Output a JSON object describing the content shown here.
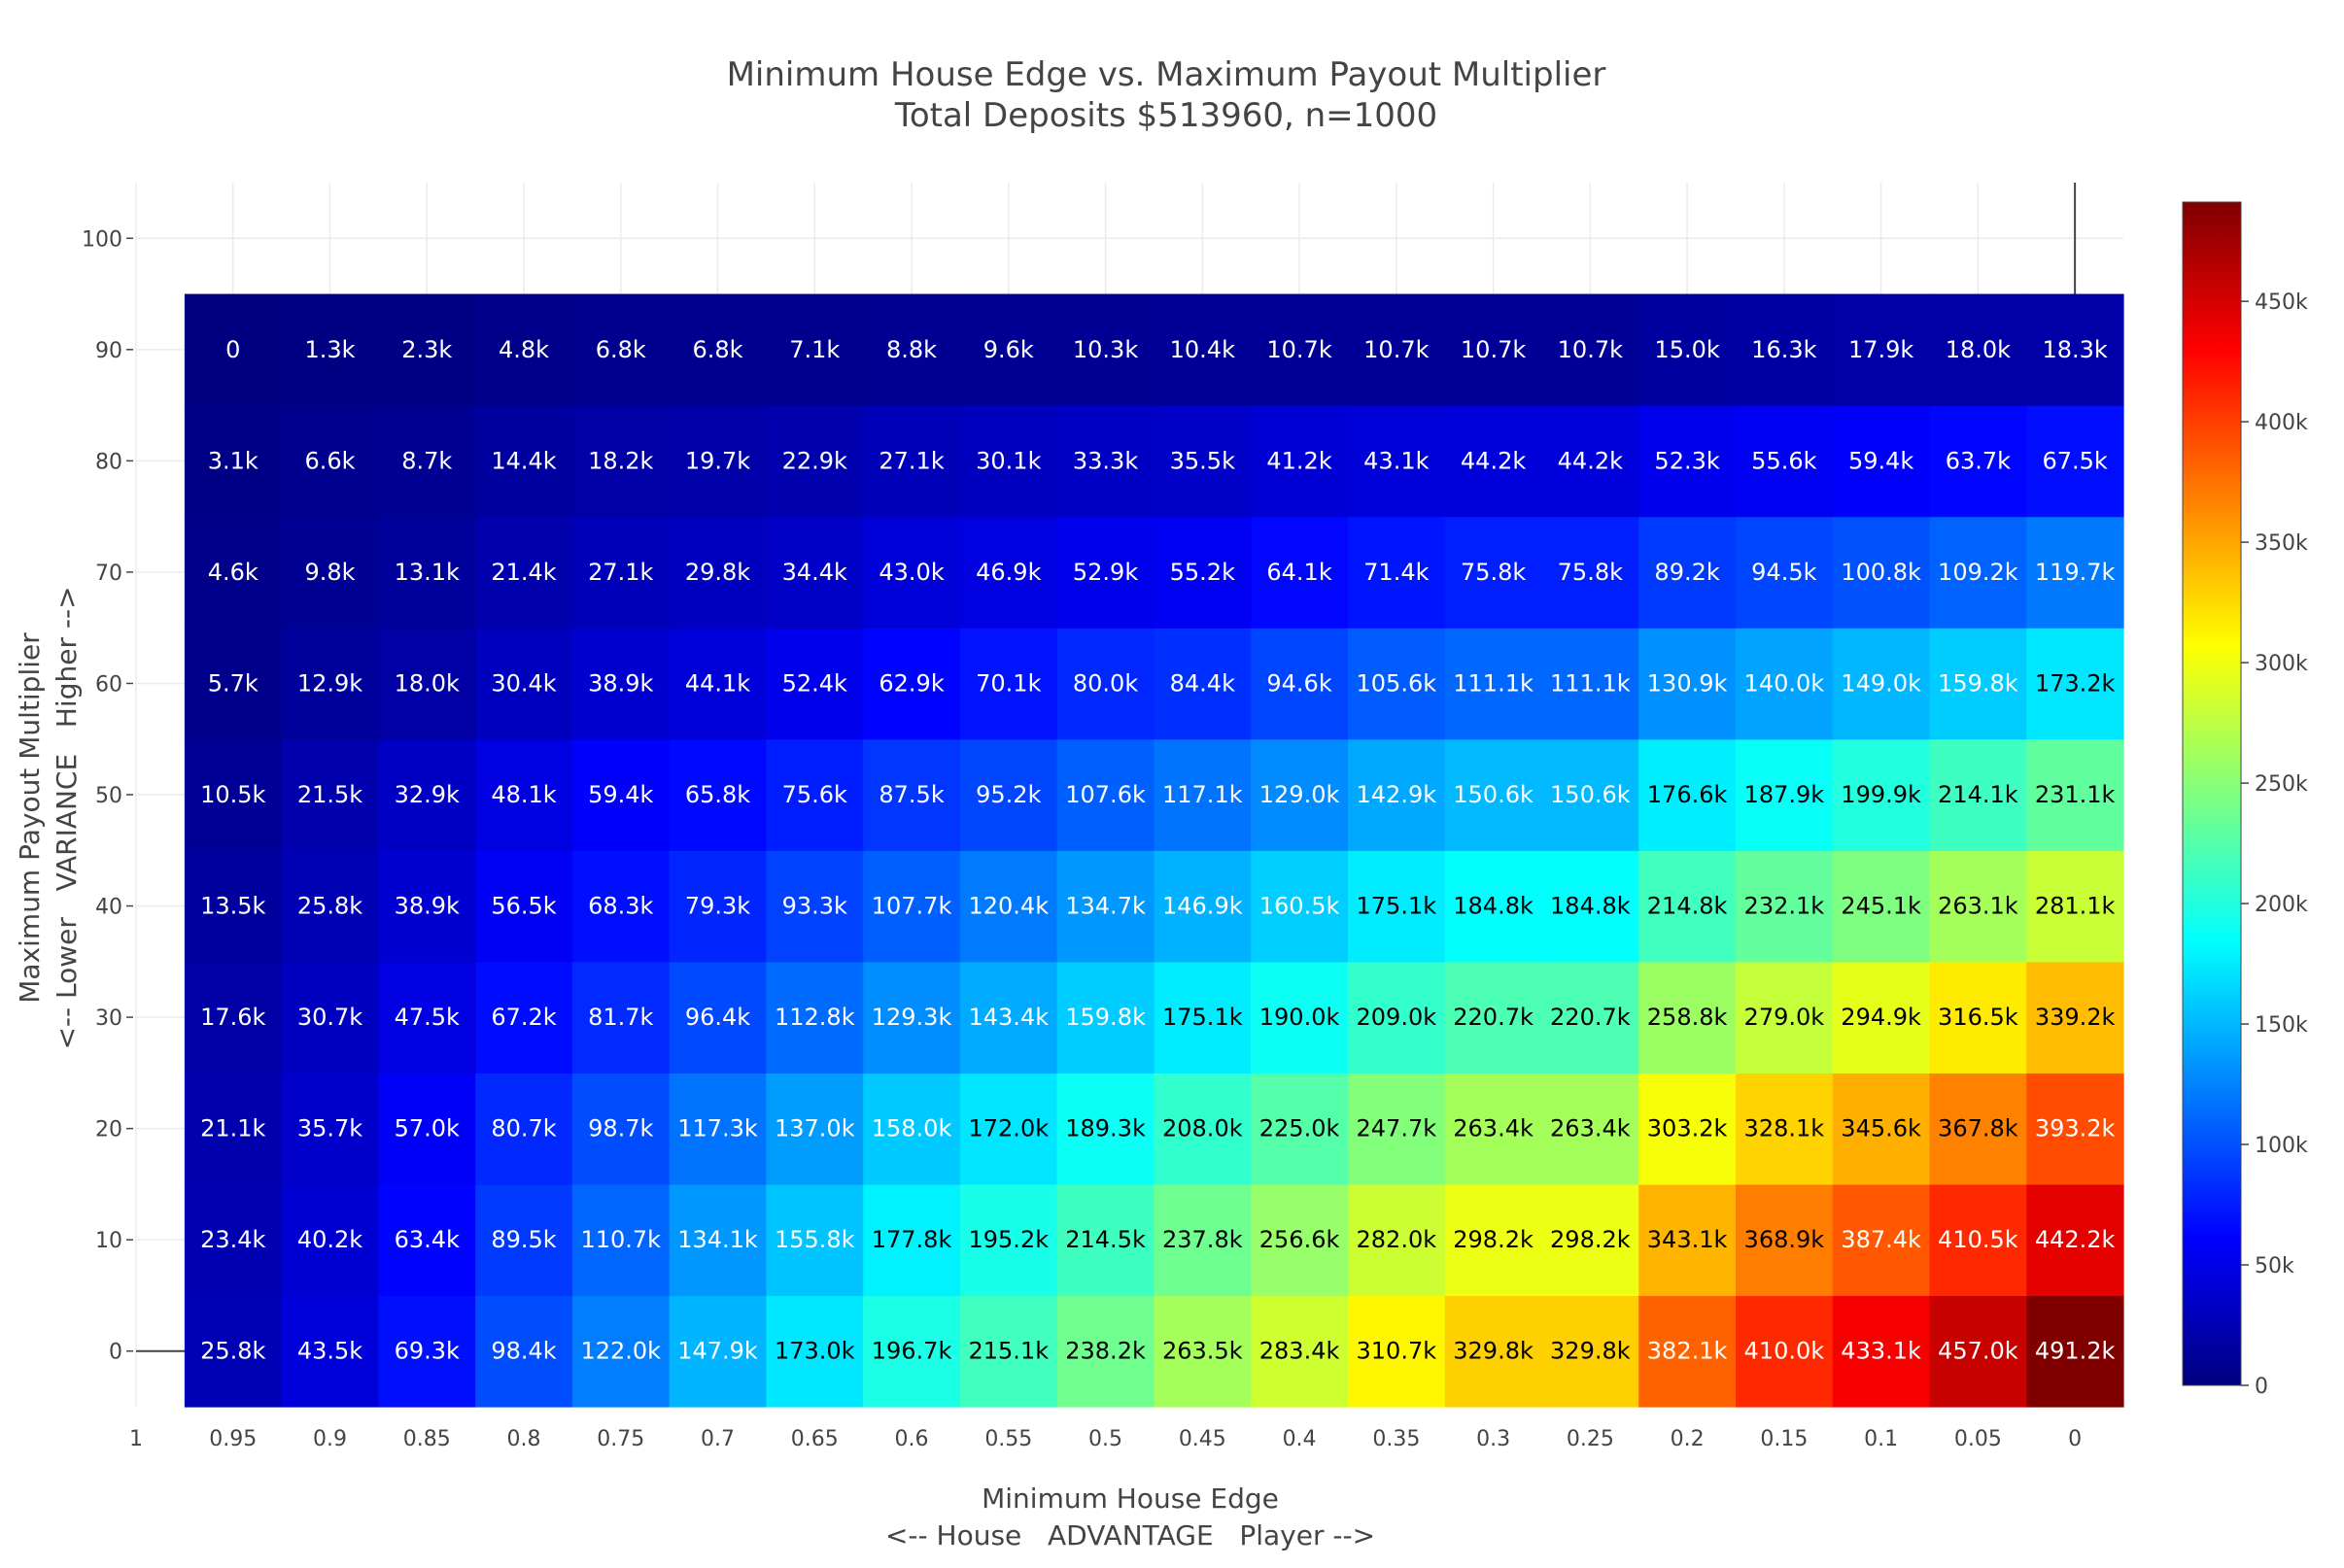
{
  "chart_data": {
    "type": "heatmap",
    "title": "Minimum House Edge vs. Maximum Payout Multiplier",
    "subtitle": "Total Deposits $513960, n=1000",
    "xlabel": "Minimum House Edge",
    "xlabel_sub": "<-- House   ADVANTAGE   Player -->",
    "ylabel": "Maximum Payout Multiplier",
    "ylabel_sub": "<-- Lower   VARIANCE   Higher -->",
    "x_ticks": [
      "1",
      "0.95",
      "0.9",
      "0.85",
      "0.8",
      "0.75",
      "0.7",
      "0.65",
      "0.6",
      "0.55",
      "0.5",
      "0.45",
      "0.4",
      "0.35",
      "0.3",
      "0.25",
      "0.2",
      "0.15",
      "0.1",
      "0.05",
      "0"
    ],
    "x_tick_values": [
      1,
      0.95,
      0.9,
      0.85,
      0.8,
      0.75,
      0.7,
      0.65,
      0.6,
      0.55,
      0.5,
      0.45,
      0.4,
      0.35,
      0.3,
      0.25,
      0.2,
      0.15,
      0.1,
      0.05,
      0
    ],
    "x_range": [
      1.0,
      -0.025
    ],
    "y_ticks": [
      "0",
      "10",
      "20",
      "30",
      "40",
      "50",
      "60",
      "70",
      "80",
      "90",
      "100"
    ],
    "y_tick_values": [
      0,
      10,
      20,
      30,
      40,
      50,
      60,
      70,
      80,
      90,
      100
    ],
    "y_range": [
      -5,
      105
    ],
    "x": [
      0.95,
      0.9,
      0.85,
      0.8,
      0.75,
      0.7,
      0.65,
      0.6,
      0.55,
      0.5,
      0.45,
      0.4,
      0.35,
      0.3,
      0.25,
      0.2,
      0.15,
      0.1,
      0.05,
      0
    ],
    "y": [
      0,
      10,
      20,
      30,
      40,
      50,
      60,
      70,
      80,
      90
    ],
    "z": [
      [
        25800,
        43500,
        69300,
        98400,
        122000,
        147900,
        173000,
        196700,
        215100,
        238200,
        263500,
        283400,
        310700,
        329800,
        329800,
        382100,
        410000,
        433100,
        457000,
        491200
      ],
      [
        23400,
        40200,
        63400,
        89500,
        110700,
        134100,
        155800,
        177800,
        195200,
        214500,
        237800,
        256600,
        282000,
        298200,
        298200,
        343100,
        368900,
        387400,
        410500,
        442200
      ],
      [
        21100,
        35700,
        57000,
        80700,
        98700,
        117300,
        137000,
        158000,
        172000,
        189300,
        208000,
        225000,
        247700,
        263400,
        263400,
        303200,
        328100,
        345600,
        367800,
        393200
      ],
      [
        17600,
        30700,
        47500,
        67200,
        81700,
        96400,
        112800,
        129300,
        143400,
        159800,
        175100,
        190000,
        209000,
        220700,
        220700,
        258800,
        279000,
        294900,
        316500,
        339200
      ],
      [
        13500,
        25800,
        38900,
        56500,
        68300,
        79300,
        93300,
        107700,
        120400,
        134700,
        146900,
        160500,
        175100,
        184800,
        184800,
        214800,
        232100,
        245100,
        263100,
        281100
      ],
      [
        10500,
        21500,
        32900,
        48100,
        59400,
        65800,
        75600,
        87500,
        95200,
        107600,
        117100,
        129000,
        142900,
        150600,
        150600,
        176600,
        187900,
        199900,
        214100,
        231100
      ],
      [
        5700,
        12900,
        18000,
        30400,
        38900,
        44100,
        52400,
        62900,
        70100,
        80000,
        84400,
        94600,
        105600,
        111100,
        111100,
        130900,
        140000,
        149000,
        159800,
        173200
      ],
      [
        4600,
        9800,
        13100,
        21400,
        27100,
        29800,
        34400,
        43000,
        46900,
        52900,
        55200,
        64100,
        71400,
        75800,
        75800,
        89200,
        94500,
        100800,
        109200,
        119700
      ],
      [
        3100,
        6600,
        8700,
        14400,
        18200,
        19700,
        22900,
        27100,
        30100,
        33300,
        35500,
        41200,
        43100,
        44200,
        44200,
        52300,
        55600,
        59400,
        63700,
        67500
      ],
      [
        0,
        1300,
        2300,
        4800,
        6800,
        6800,
        7100,
        8800,
        9600,
        10300,
        10400,
        10700,
        10700,
        10700,
        10700,
        15000,
        16300,
        17900,
        18000,
        18300
      ]
    ],
    "text": [
      [
        "25.8k",
        "43.5k",
        "69.3k",
        "98.4k",
        "122.0k",
        "147.9k",
        "173.0k",
        "196.7k",
        "215.1k",
        "238.2k",
        "263.5k",
        "283.4k",
        "310.7k",
        "329.8k",
        "329.8k",
        "382.1k",
        "410.0k",
        "433.1k",
        "457.0k",
        "491.2k"
      ],
      [
        "23.4k",
        "40.2k",
        "63.4k",
        "89.5k",
        "110.7k",
        "134.1k",
        "155.8k",
        "177.8k",
        "195.2k",
        "214.5k",
        "237.8k",
        "256.6k",
        "282.0k",
        "298.2k",
        "298.2k",
        "343.1k",
        "368.9k",
        "387.4k",
        "410.5k",
        "442.2k"
      ],
      [
        "21.1k",
        "35.7k",
        "57.0k",
        "80.7k",
        "98.7k",
        "117.3k",
        "137.0k",
        "158.0k",
        "172.0k",
        "189.3k",
        "208.0k",
        "225.0k",
        "247.7k",
        "263.4k",
        "263.4k",
        "303.2k",
        "328.1k",
        "345.6k",
        "367.8k",
        "393.2k"
      ],
      [
        "17.6k",
        "30.7k",
        "47.5k",
        "67.2k",
        "81.7k",
        "96.4k",
        "112.8k",
        "129.3k",
        "143.4k",
        "159.8k",
        "175.1k",
        "190.0k",
        "209.0k",
        "220.7k",
        "220.7k",
        "258.8k",
        "279.0k",
        "294.9k",
        "316.5k",
        "339.2k"
      ],
      [
        "13.5k",
        "25.8k",
        "38.9k",
        "56.5k",
        "68.3k",
        "79.3k",
        "93.3k",
        "107.7k",
        "120.4k",
        "134.7k",
        "146.9k",
        "160.5k",
        "175.1k",
        "184.8k",
        "184.8k",
        "214.8k",
        "232.1k",
        "245.1k",
        "263.1k",
        "281.1k"
      ],
      [
        "10.5k",
        "21.5k",
        "32.9k",
        "48.1k",
        "59.4k",
        "65.8k",
        "75.6k",
        "87.5k",
        "95.2k",
        "107.6k",
        "117.1k",
        "129.0k",
        "142.9k",
        "150.6k",
        "150.6k",
        "176.6k",
        "187.9k",
        "199.9k",
        "214.1k",
        "231.1k"
      ],
      [
        "5.7k",
        "12.9k",
        "18.0k",
        "30.4k",
        "38.9k",
        "44.1k",
        "52.4k",
        "62.9k",
        "70.1k",
        "80.0k",
        "84.4k",
        "94.6k",
        "105.6k",
        "111.1k",
        "111.1k",
        "130.9k",
        "140.0k",
        "149.0k",
        "159.8k",
        "173.2k"
      ],
      [
        "4.6k",
        "9.8k",
        "13.1k",
        "21.4k",
        "27.1k",
        "29.8k",
        "34.4k",
        "43.0k",
        "46.9k",
        "52.9k",
        "55.2k",
        "64.1k",
        "71.4k",
        "75.8k",
        "75.8k",
        "89.2k",
        "94.5k",
        "100.8k",
        "109.2k",
        "119.7k"
      ],
      [
        "3.1k",
        "6.6k",
        "8.7k",
        "14.4k",
        "18.2k",
        "19.7k",
        "22.9k",
        "27.1k",
        "30.1k",
        "33.3k",
        "35.5k",
        "41.2k",
        "43.1k",
        "44.2k",
        "44.2k",
        "52.3k",
        "55.6k",
        "59.4k",
        "63.7k",
        "67.5k"
      ],
      [
        "0",
        "1.3k",
        "2.3k",
        "4.8k",
        "6.8k",
        "6.8k",
        "7.1k",
        "8.8k",
        "9.6k",
        "10.3k",
        "10.4k",
        "10.7k",
        "10.7k",
        "10.7k",
        "10.7k",
        "15.0k",
        "16.3k",
        "17.9k",
        "18.0k",
        "18.3k"
      ]
    ],
    "colorscale": "jet",
    "zmin": 0,
    "zmax": 491200,
    "colorbar_ticks": [
      "0",
      "50k",
      "100k",
      "150k",
      "200k",
      "250k",
      "300k",
      "350k",
      "400k",
      "450k"
    ],
    "colorbar_values": [
      0,
      50000,
      100000,
      150000,
      200000,
      250000,
      300000,
      350000,
      400000,
      450000
    ],
    "grid": true,
    "zero_lines": true
  }
}
